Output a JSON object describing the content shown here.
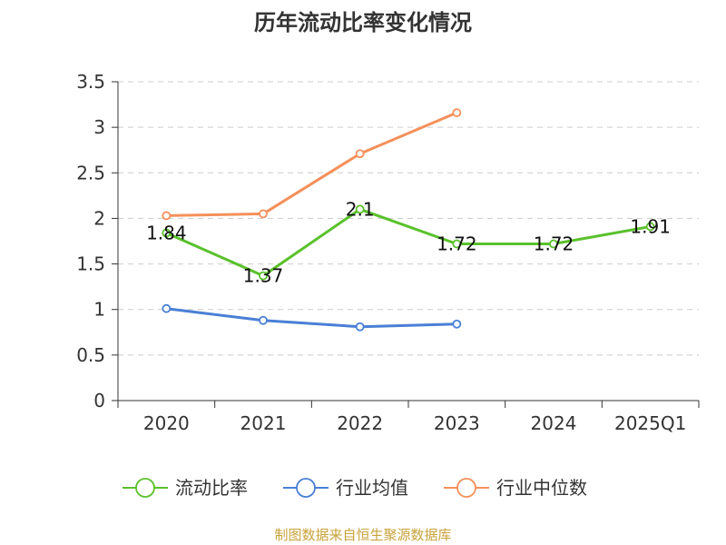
{
  "chart_data": {
    "type": "line",
    "title": "历年流动比率变化情况",
    "categories": [
      "2020",
      "2021",
      "2022",
      "2023",
      "2024",
      "2025Q1"
    ],
    "ylim": [
      0,
      3.5
    ],
    "yticks": [
      "0",
      "0.5",
      "1",
      "1.5",
      "2",
      "2.5",
      "3",
      "3.5"
    ],
    "grid": true,
    "legend_position": "bottom",
    "series": [
      {
        "name": "流动比率",
        "color": "#5ac12b",
        "values": [
          1.84,
          1.37,
          2.1,
          1.72,
          1.72,
          1.91
        ],
        "labels": [
          "1.84",
          "1.37",
          "2.1",
          "1.72",
          "1.72",
          "1.91"
        ]
      },
      {
        "name": "行业均值",
        "color": "#4a7fd6",
        "values": [
          1.01,
          0.88,
          0.81,
          0.84,
          null,
          null
        ]
      },
      {
        "name": "行业中位数",
        "color": "#f5905a",
        "values": [
          2.03,
          2.05,
          2.71,
          3.16,
          null,
          null
        ]
      }
    ]
  },
  "source": "制图数据来自恒生聚源数据库"
}
